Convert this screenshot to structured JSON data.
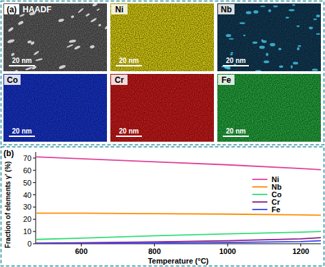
{
  "image_panels": {
    "label": "(a)",
    "tiles": [
      {
        "label": "HAADF",
        "scale_bar": "20 nm",
        "color": "#5c5c5c"
      },
      {
        "label": "Ni",
        "scale_bar": "20 nm",
        "color": "#d6ca12"
      },
      {
        "label": "Nb",
        "scale_bar": "20 nm",
        "color": "#123a55"
      },
      {
        "label": "Co",
        "scale_bar": "20 nm",
        "color": "#1733c8"
      },
      {
        "label": "Cr",
        "scale_bar": "20 nm",
        "color": "#c81a1a"
      },
      {
        "label": "Fe",
        "scale_bar": "20 nm",
        "color": "#24a23c"
      }
    ]
  },
  "chart_data": {
    "type": "line",
    "panel_label": "(b)",
    "x_label": "Temperature (°C)",
    "y_label": "Fraction of elements γ' (%)",
    "xlim": [
      475,
      1255
    ],
    "ylim": [
      0,
      75
    ],
    "xticks": [
      600,
      800,
      1000,
      1200
    ],
    "yticks": [
      0,
      10,
      20,
      30,
      40,
      50,
      60,
      70
    ],
    "x": [
      475,
      600,
      800,
      1000,
      1200,
      1255
    ],
    "series": [
      {
        "name": "Ni",
        "color": "#e0409a",
        "values": [
          71,
          69.5,
          67,
          64.5,
          61.5,
          60.5
        ]
      },
      {
        "name": "Nb",
        "color": "#ff8c00",
        "values": [
          25,
          25,
          24.6,
          24.2,
          23.6,
          23.3
        ]
      },
      {
        "name": "Co",
        "color": "#33dd77",
        "values": [
          3.5,
          4.5,
          6.5,
          8,
          9.5,
          10
        ]
      },
      {
        "name": "Cr",
        "color": "#8b1a8b",
        "values": [
          0.5,
          0.8,
          1.5,
          2.5,
          4,
          5
        ]
      },
      {
        "name": "Fe",
        "color": "#3344ee",
        "values": [
          0.1,
          0.2,
          0.5,
          1,
          1.8,
          2.5
        ]
      }
    ],
    "legend": "right",
    "grid": false
  }
}
